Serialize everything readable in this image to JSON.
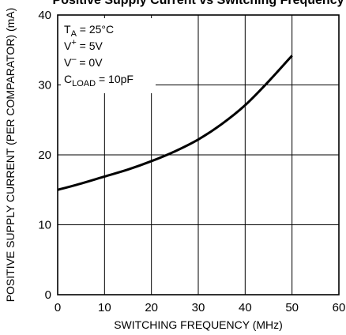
{
  "chart_data": {
    "type": "line",
    "title": "Positive Supply Current vs Switching Frequency",
    "xlabel": "SWITCHING FREQUENCY (MHz)",
    "ylabel": "POSITIVE SUPPLY CURRENT (PER COMPARATOR) (mA)",
    "xlim": [
      0,
      60
    ],
    "ylim": [
      0,
      40
    ],
    "xticks": [
      0,
      10,
      20,
      30,
      40,
      50,
      60
    ],
    "yticks": [
      0,
      10,
      20,
      30,
      40
    ],
    "grid": true,
    "conditions": {
      "ta": {
        "main": "T",
        "sub": "A",
        "rest": " = 25°C"
      },
      "vplus": {
        "main": "V",
        "sup": "+",
        "rest": " = 5V"
      },
      "vminus": {
        "main": "V",
        "sup": "–",
        "rest": " = 0V"
      },
      "cload": {
        "main": "C",
        "sub": "LOAD",
        "rest": " = 10pF"
      }
    },
    "series": [
      {
        "x": [
          0,
          5,
          10,
          15,
          20,
          25,
          30,
          35,
          40,
          45,
          50
        ],
        "y": [
          15.0,
          15.9,
          16.9,
          17.9,
          19.1,
          20.5,
          22.2,
          24.4,
          27.1,
          30.5,
          34.2
        ]
      }
    ]
  }
}
